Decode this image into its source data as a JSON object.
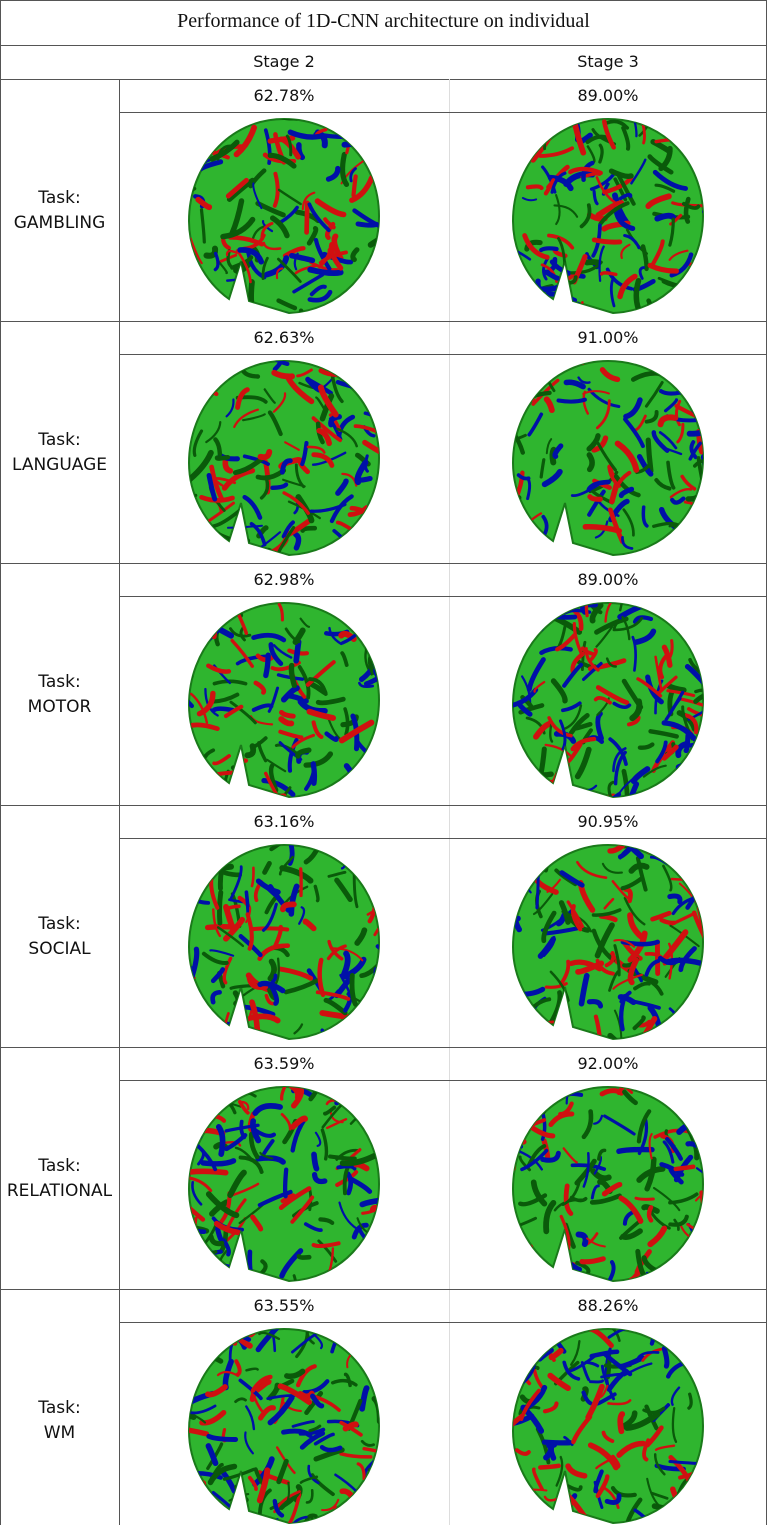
{
  "title": "Performance of 1D-CNN architecture on individual",
  "columns": [
    "Stage 2",
    "Stage 3"
  ],
  "rows": [
    {
      "prefix": "Task:",
      "task": "GAMBLING",
      "values": [
        "62.78%",
        "89.00%"
      ]
    },
    {
      "prefix": "Task:",
      "task": "LANGUAGE",
      "values": [
        "62.63%",
        "91.00%"
      ]
    },
    {
      "prefix": "Task:",
      "task": "MOTOR",
      "values": [
        "62.98%",
        "89.00%"
      ]
    },
    {
      "prefix": "Task:",
      "task": "SOCIAL",
      "values": [
        "63.16%",
        "90.95%"
      ]
    },
    {
      "prefix": "Task:",
      "task": "RELATIONAL",
      "values": [
        "63.59%",
        "92.00%"
      ]
    },
    {
      "prefix": "Task:",
      "task": "WM",
      "values": [
        "63.55%",
        "88.26%"
      ]
    }
  ]
}
